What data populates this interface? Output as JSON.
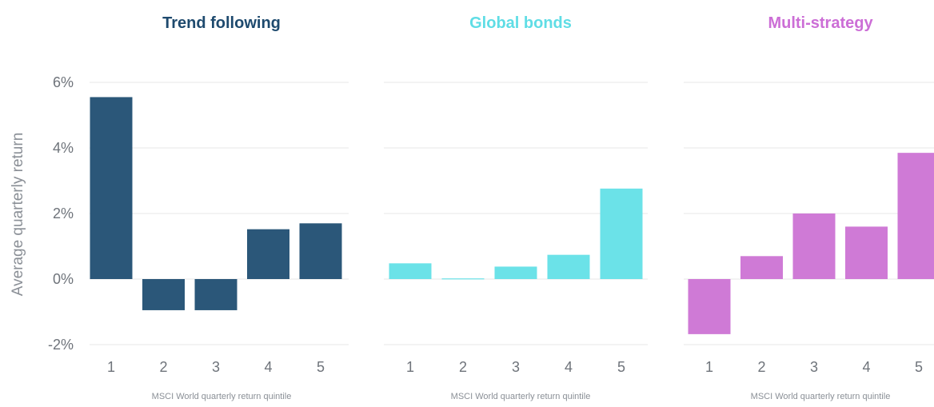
{
  "chart_data": [
    {
      "type": "bar",
      "title": "Trend following",
      "title_color": "#1e4a6e",
      "bar_color": "#2b5779",
      "categories": [
        "1",
        "2",
        "3",
        "4",
        "5"
      ],
      "values": [
        5.55,
        -0.95,
        -0.95,
        1.52,
        1.7
      ],
      "xlabel": "MSCI World quarterly return quintile",
      "ylabel": "Average quarterly return",
      "ylim": [
        -2,
        6
      ],
      "yticks": [
        "-2%",
        "0%",
        "2%",
        "4%",
        "6%"
      ],
      "grid": true
    },
    {
      "type": "bar",
      "title": "Global bonds",
      "title_color": "#5fdde5",
      "bar_color": "#6be2e8",
      "categories": [
        "1",
        "2",
        "3",
        "4",
        "5"
      ],
      "values": [
        0.48,
        0.02,
        0.38,
        0.74,
        2.76
      ],
      "xlabel": "MSCI World quarterly return quintile",
      "ylabel": "",
      "ylim": [
        -2,
        6
      ],
      "grid": true
    },
    {
      "type": "bar",
      "title": "Multi-strategy",
      "title_color": "#cc6ed6",
      "bar_color": "#cf7ad6",
      "categories": [
        "1",
        "2",
        "3",
        "4",
        "5"
      ],
      "values": [
        -1.68,
        0.7,
        2.0,
        1.6,
        3.85
      ],
      "xlabel": "MSCI World quarterly return quintile",
      "ylabel": "",
      "ylim": [
        -2,
        6
      ],
      "grid": true
    }
  ]
}
